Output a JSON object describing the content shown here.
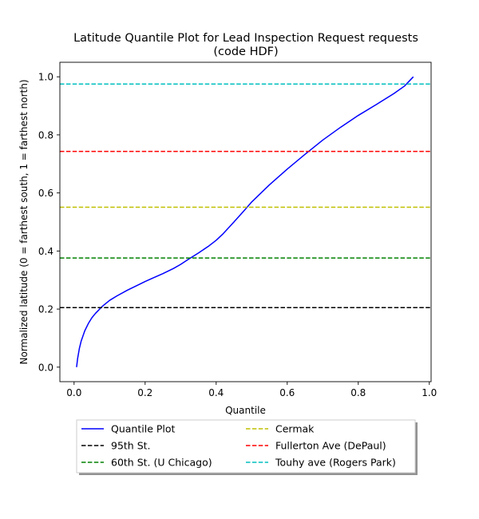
{
  "chart_data": {
    "type": "line",
    "title_lines": [
      "Latitude Quantile Plot for Lead Inspection Request  requests",
      "(code HDF)"
    ],
    "xlabel": "Quantile",
    "ylabel": "Normalized latitude (0 = farthest south, 1 = farthest north)",
    "xlim": [
      -0.04,
      1.005
    ],
    "ylim": [
      -0.05,
      1.05
    ],
    "xticks": [
      0.0,
      0.2,
      0.4,
      0.6,
      0.8,
      1.0
    ],
    "xtick_labels": [
      "0.0",
      "0.2",
      "0.4",
      "0.6",
      "0.8",
      "1.0"
    ],
    "yticks": [
      0.0,
      0.2,
      0.4,
      0.6,
      0.8,
      1.0
    ],
    "ytick_labels": [
      "0.0",
      "0.2",
      "0.4",
      "0.6",
      "0.8",
      "1.0"
    ],
    "grid": false,
    "legend_placement": "below plot, two columns",
    "series": [
      {
        "name": "Quantile Plot",
        "style": "solid",
        "color": "#0000ff",
        "x": [
          0.007,
          0.01,
          0.015,
          0.02,
          0.03,
          0.04,
          0.05,
          0.06,
          0.08,
          0.1,
          0.12,
          0.15,
          0.18,
          0.2,
          0.22,
          0.25,
          0.28,
          0.3,
          0.32,
          0.35,
          0.38,
          0.4,
          0.42,
          0.45,
          0.48,
          0.5,
          0.55,
          0.6,
          0.65,
          0.7,
          0.75,
          0.8,
          0.85,
          0.9,
          0.93,
          0.955
        ],
        "y": [
          0.0,
          0.03,
          0.065,
          0.09,
          0.125,
          0.15,
          0.17,
          0.185,
          0.21,
          0.23,
          0.245,
          0.265,
          0.283,
          0.295,
          0.306,
          0.322,
          0.34,
          0.354,
          0.37,
          0.393,
          0.418,
          0.437,
          0.46,
          0.5,
          0.541,
          0.569,
          0.628,
          0.682,
          0.733,
          0.782,
          0.826,
          0.867,
          0.904,
          0.942,
          0.968,
          1.0
        ]
      },
      {
        "name": "95th St.",
        "style": "dashed",
        "color": "#000000",
        "y_const": 0.205
      },
      {
        "name": "60th St. (U Chicago)",
        "style": "dashed",
        "color": "#008000",
        "y_const": 0.376
      },
      {
        "name": "Cermak",
        "style": "dashed",
        "color": "#bfbf00",
        "y_const": 0.551
      },
      {
        "name": "Fullerton Ave (DePaul)",
        "style": "dashed",
        "color": "#ff0000",
        "y_const": 0.743
      },
      {
        "name": "Touhy ave (Rogers Park)",
        "style": "dashed",
        "color": "#00bfbf",
        "y_const": 0.975
      }
    ],
    "legend_order": [
      "Quantile Plot",
      "95th St.",
      "60th St. (U Chicago)",
      "Cermak",
      "Fullerton Ave (DePaul)",
      "Touhy ave (Rogers Park)"
    ]
  }
}
